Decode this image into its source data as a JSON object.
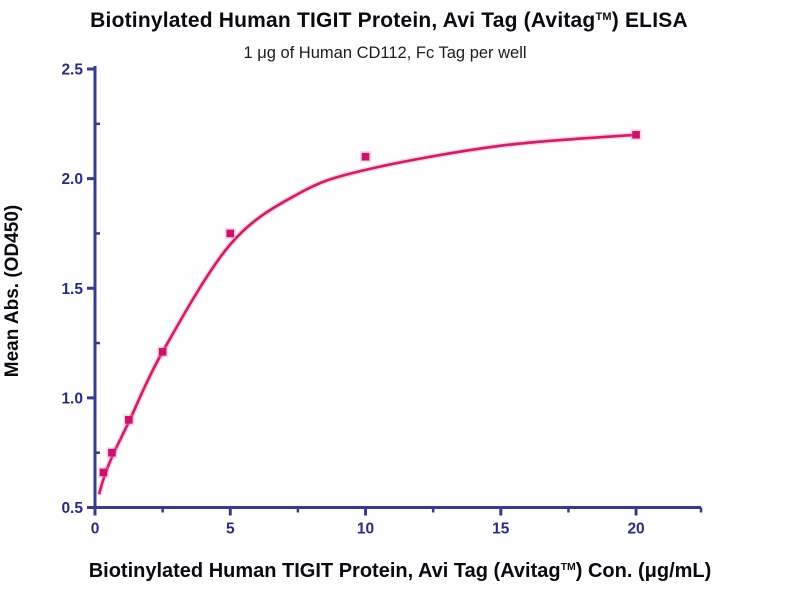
{
  "header": {
    "title_pre": "Biotinylated Human TIGIT Protein, Avi Tag (Avitag",
    "title_tm": "TM",
    "title_post": ") ELISA",
    "subtitle": "1 μg of Human CD112, Fc Tag per well"
  },
  "xaxis_label": {
    "pre": "Biotinylated Human TIGIT Protein, Avi Tag (Avitag",
    "tm": "TM",
    "post": ") Con. (μg/mL)"
  },
  "chart_data": {
    "type": "scatter",
    "title": "Biotinylated Human TIGIT Protein, Avi Tag (Avitag™) ELISA",
    "subtitle": "1 μg of Human CD112, Fc Tag per well",
    "xlabel": "Biotinylated Human TIGIT Protein, Avi Tag (Avitag™) Con. (μg/mL)",
    "ylabel": "Mean Abs. (OD450)",
    "x": [
      0.3125,
      0.625,
      1.25,
      2.5,
      5,
      10,
      20
    ],
    "y": [
      0.66,
      0.75,
      0.9,
      1.21,
      1.75,
      2.1,
      2.2
    ],
    "fit_curve": {
      "x": [
        0.15,
        0.3125,
        0.625,
        1.25,
        2.5,
        5,
        7.5,
        10,
        15,
        20
      ],
      "y": [
        0.56,
        0.63,
        0.73,
        0.89,
        1.21,
        1.7,
        1.93,
        2.04,
        2.15,
        2.2
      ]
    },
    "xlim": [
      0,
      22.4
    ],
    "ylim": [
      0.5,
      2.5
    ],
    "xticks": {
      "major": [
        0,
        5,
        10,
        15,
        20
      ],
      "labels": [
        "0",
        "5",
        "10",
        "15",
        "20"
      ],
      "minor": [
        2.5,
        7.5,
        12.5,
        17.5,
        22.4
      ]
    },
    "yticks": {
      "major": [
        0.5,
        1.0,
        1.5,
        2.0,
        2.5
      ],
      "labels": [
        "0.5",
        "1.0",
        "1.5",
        "2.0",
        "2.5"
      ],
      "minor": [
        0.75,
        1.25,
        1.75,
        2.25
      ]
    },
    "grid": false,
    "legend": null,
    "colors": {
      "curve": "#c92066",
      "curve_halo": "#f2a6ca",
      "marker": "#c9146b",
      "marker_halo": "#ef86ba",
      "axis": "#3a3a8c",
      "tick_label": "#2c2c7e"
    }
  }
}
